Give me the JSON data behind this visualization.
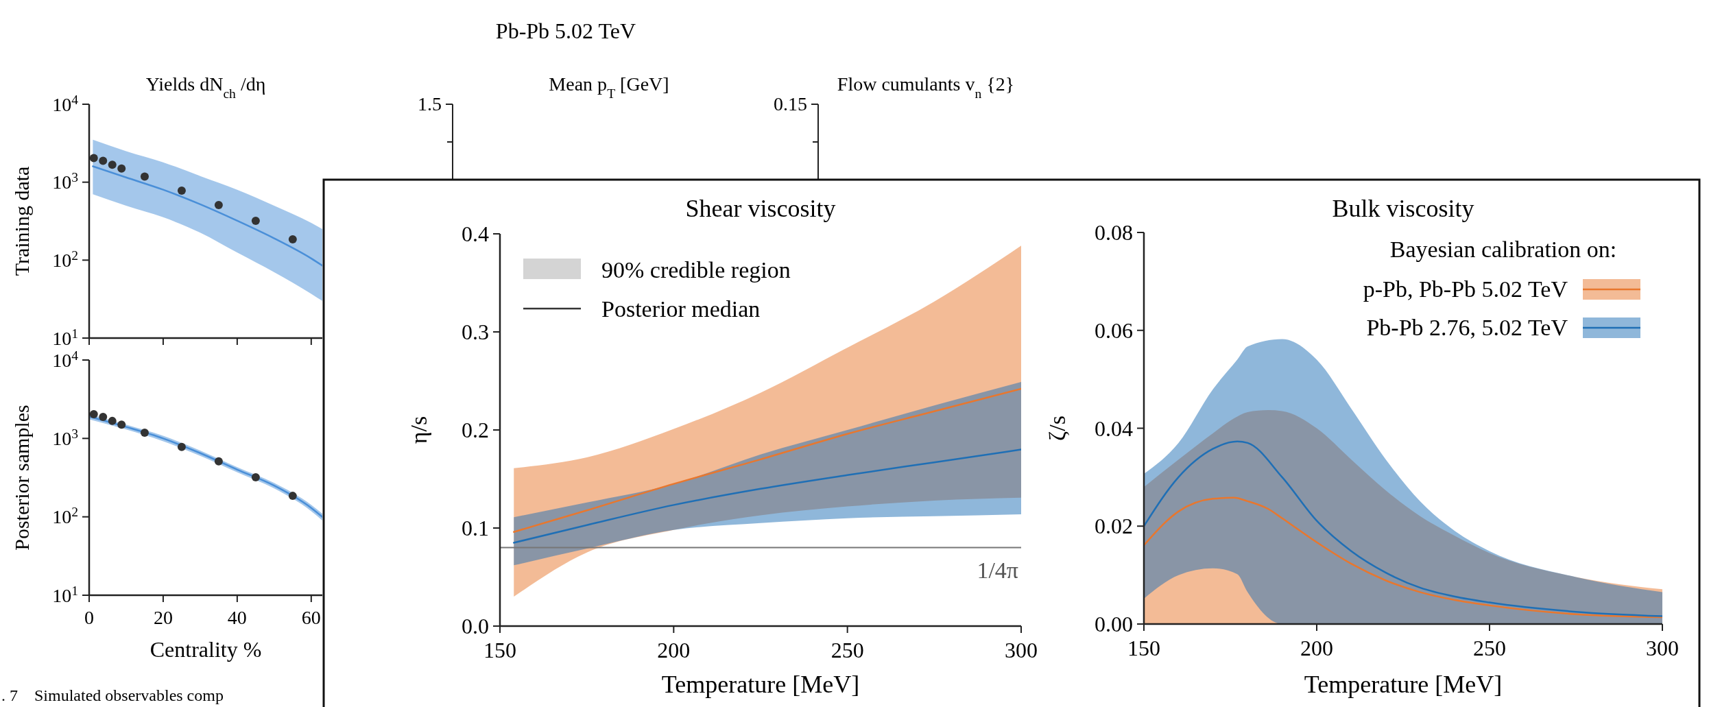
{
  "chart_data": [
    {
      "type": "line",
      "title": "Yields dN$_{ch}$/dη",
      "ylabel": "Training data",
      "log": "y",
      "xlim": [
        0,
        63
      ],
      "ylim": [
        10,
        10000
      ],
      "xticks": [
        0,
        20,
        40,
        60
      ],
      "yticks": [
        {
          "value": 10,
          "label": "10$^{1}$"
        },
        {
          "value": 100,
          "label": "10$^{2}$"
        },
        {
          "value": 1000,
          "label": "10$^{3}$"
        },
        {
          "value": 10000,
          "label": "10$^{4}$"
        }
      ],
      "tick_labels": "y",
      "annotations": [
        "Pb-Pb 5.02 TeV"
      ],
      "series": [
        {
          "type": "line",
          "color": "#4a8fd8",
          "x": [
            1,
            10,
            20,
            30,
            40,
            50,
            60,
            63
          ],
          "values": [
            1600,
            1150,
            800,
            520,
            320,
            190,
            105,
            85
          ],
          "lower": [
            700,
            500,
            355,
            225,
            125,
            70,
            37,
            30
          ],
          "upper": [
            3500,
            2500,
            1800,
            1200,
            800,
            500,
            300,
            250
          ]
        },
        {
          "type": "scatter",
          "marker": "circle",
          "color": "#333333",
          "x": [
            1.25,
            3.75,
            6.25,
            8.75,
            15,
            25,
            35,
            45,
            55
          ],
          "values": [
            2040,
            1880,
            1670,
            1500,
            1180,
            780,
            510,
            320,
            185
          ]
        }
      ]
    },
    {
      "type": "other",
      "title": "Mean p$_{T}$ [GeV]",
      "annotations": [
        "1.5"
      ]
    },
    {
      "type": "other",
      "title": "Flow cumulants v$_{n}${2}",
      "annotations": [
        "0.15"
      ]
    },
    {
      "type": "line",
      "ylabel": "Posterior samples",
      "xlabel": "Centrality %",
      "log": "y",
      "xlim": [
        0,
        63
      ],
      "ylim": [
        10,
        10000
      ],
      "xticks": [
        0,
        20,
        40,
        60
      ],
      "yticks": [
        {
          "value": 10,
          "label": "10$^{1}$"
        },
        {
          "value": 100,
          "label": "10$^{2}$"
        },
        {
          "value": 1000,
          "label": "10$^{3}$"
        },
        {
          "value": 10000,
          "label": "10$^{4}$"
        }
      ],
      "annotations": [
        ". 7    Simulated observables comp"
      ],
      "series": [
        {
          "type": "line",
          "color": "#4a8fd8",
          "x": [
            0,
            10,
            20,
            30,
            40,
            50,
            60,
            63
          ],
          "values": [
            1900,
            1400,
            1000,
            650,
            400,
            250,
            130,
            100
          ],
          "lower": [
            1750,
            1300,
            920,
            600,
            370,
            230,
            118,
            90
          ],
          "upper": [
            2050,
            1500,
            1080,
            700,
            430,
            270,
            142,
            110
          ]
        },
        {
          "type": "scatter",
          "marker": "circle",
          "color": "#333333",
          "x": [
            1.25,
            3.75,
            6.25,
            8.75,
            15,
            25,
            35,
            45,
            55
          ],
          "values": [
            2040,
            1880,
            1670,
            1500,
            1180,
            780,
            510,
            320,
            185
          ]
        }
      ]
    },
    {
      "type": "line",
      "title": "Shear viscosity",
      "xlabel": "Temperature [MeV]",
      "ylabel": "η/s",
      "xlim": [
        150,
        300
      ],
      "ylim": [
        0,
        0.4
      ],
      "xticks": [
        150,
        200,
        250,
        300
      ],
      "yticks": [
        {
          "value": 0,
          "label": "0.0"
        },
        0.1,
        0.2,
        0.3,
        0.4
      ],
      "annotations": [
        "90% credible region",
        "Posterior median"
      ],
      "ref_lines": [
        {
          "axis": "y",
          "value": 0.08,
          "label": "1/4π",
          "color": "#777777"
        }
      ],
      "series": [
        {
          "type": "line",
          "color": "#e8772e",
          "x": [
            154,
            175,
            200,
            225,
            250,
            275,
            300
          ],
          "values": [
            0.096,
            0.118,
            0.145,
            0.17,
            0.196,
            0.219,
            0.242
          ],
          "lower": [
            0.03,
            0.075,
            0.098,
            0.113,
            0.122,
            0.128,
            0.131
          ],
          "upper": [
            0.161,
            0.172,
            0.201,
            0.238,
            0.284,
            0.331,
            0.388
          ]
        },
        {
          "type": "line",
          "color": "#1f6fb5",
          "x": [
            154,
            175,
            200,
            225,
            250,
            275,
            300
          ],
          "values": [
            0.085,
            0.103,
            0.1235,
            0.14,
            0.154,
            0.167,
            0.18
          ],
          "lower": [
            0.062,
            0.079,
            0.098,
            0.105,
            0.11,
            0.112,
            0.114
          ],
          "upper": [
            0.111,
            0.126,
            0.145,
            0.175,
            0.2,
            0.225,
            0.249
          ]
        }
      ]
    },
    {
      "type": "line",
      "title": "Bulk viscosity",
      "xlabel": "Temperature [MeV]",
      "ylabel": "ζ/s",
      "xlim": [
        150,
        300
      ],
      "ylim": [
        0,
        0.08
      ],
      "xticks": [
        150,
        200,
        250,
        300
      ],
      "yticks": [
        {
          "value": 0,
          "label": "0.00"
        },
        {
          "value": 0.02,
          "label": "0.02"
        },
        {
          "value": 0.04,
          "label": "0.04"
        },
        {
          "value": 0.06,
          "label": "0.06"
        },
        {
          "value": 0.08,
          "label": "0.08"
        }
      ],
      "legend": "top right",
      "legend_title": "Bayesian calibration on:",
      "series": [
        {
          "type": "line",
          "name": "p-Pb, Pb-Pb 5.02 TeV",
          "color": "#e8772e",
          "x": [
            150,
            160,
            170,
            176,
            180,
            186,
            190,
            200,
            210,
            220,
            230,
            240,
            250,
            275,
            300
          ],
          "values": [
            0.0161,
            0.023,
            0.0256,
            0.0258,
            0.0251,
            0.0235,
            0.0216,
            0.0167,
            0.0123,
            0.0089,
            0.0065,
            0.0049,
            0.0038,
            0.002,
            0.0014
          ],
          "lower": [
            0,
            0,
            0,
            0,
            0,
            0,
            0,
            0,
            0,
            0,
            0,
            0,
            0,
            0,
            0
          ],
          "upper": [
            0.028,
            0.0336,
            0.039,
            0.042,
            0.0433,
            0.0437,
            0.0435,
            0.04,
            0.0336,
            0.0273,
            0.022,
            0.018,
            0.0145,
            0.0096,
            0.0071
          ]
        },
        {
          "type": "line",
          "name": "Pb-Pb 2.76, 5.02 TeV",
          "color": "#1f6fb5",
          "x": [
            150,
            160,
            170,
            177,
            180,
            190,
            200,
            210,
            220,
            230,
            240,
            250,
            275,
            300
          ],
          "values": [
            0.02,
            0.03,
            0.0358,
            0.0373,
            0.037,
            0.03,
            0.0211,
            0.0149,
            0.0105,
            0.0074,
            0.0056,
            0.0044,
            0.0025,
            0.0016
          ],
          "lower": [
            0.0052,
            0.01,
            0.0114,
            0.0102,
            0.0065,
            0,
            0,
            0,
            0,
            0,
            0,
            0,
            0,
            0
          ],
          "upper": [
            0.0307,
            0.037,
            0.048,
            0.054,
            0.0567,
            0.0582,
            0.054,
            0.044,
            0.0336,
            0.025,
            0.019,
            0.0149,
            0.0096,
            0.0065
          ]
        }
      ]
    }
  ]
}
